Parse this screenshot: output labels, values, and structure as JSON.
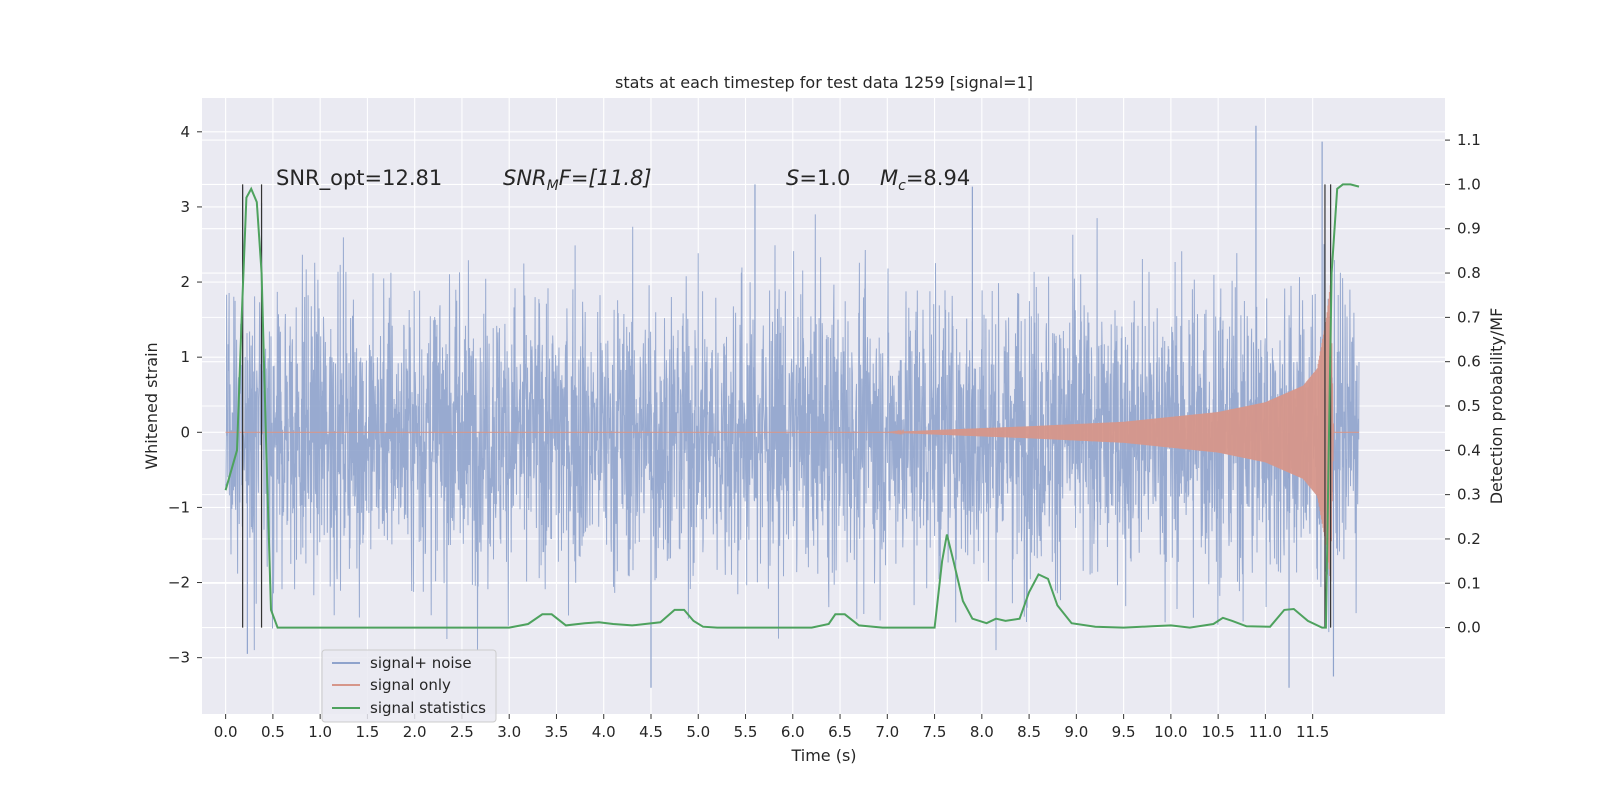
{
  "chart_data": {
    "type": "line",
    "title": "stats at each timestep for test data 1259 [signal=1]",
    "xlabel": "Time (s)",
    "ylabel_left": "Whitened strain",
    "ylabel_right": "Detection probability/MF",
    "xlim": [
      -0.25,
      12.9
    ],
    "ylim_left": [
      -3.75,
      4.45
    ],
    "ylim_right": [
      -0.195,
      1.195
    ],
    "grid": true,
    "legend_placement": "lower-left",
    "x_ticks": [
      0.0,
      0.5,
      1.0,
      1.5,
      2.0,
      2.5,
      3.0,
      3.5,
      4.0,
      4.5,
      5.0,
      5.5,
      6.0,
      6.5,
      7.0,
      7.5,
      8.0,
      8.5,
      9.0,
      9.5,
      10.0,
      10.5,
      11.0,
      11.5
    ],
    "x_tick_labels": [
      "0.0",
      "0.5",
      "1.0",
      "1.5",
      "2.0",
      "2.5",
      "3.0",
      "3.5",
      "4.0",
      "4.5",
      "5.0",
      "5.5",
      "6.0",
      "6.5",
      "7.0",
      "7.5",
      "8.0",
      "8.5",
      "9.0",
      "9.5",
      "10.0",
      "10.5",
      "11.0",
      "11.5"
    ],
    "y_ticks_left": [
      4,
      3,
      2,
      1,
      0,
      -1,
      -2,
      -3
    ],
    "y_tick_labels_left": [
      "4",
      "3",
      "2",
      "1",
      "0",
      "−1",
      "−2",
      "−3"
    ],
    "y_ticks_right": [
      1.1,
      1.0,
      0.9,
      0.8,
      0.7,
      0.6,
      0.5,
      0.4,
      0.3,
      0.2,
      0.1,
      0.0
    ],
    "y_tick_labels_right": [
      "1.1",
      "1.0",
      "0.9",
      "0.8",
      "0.7",
      "0.6",
      "0.5",
      "0.4",
      "0.3",
      "0.2",
      "0.1",
      "0.0"
    ],
    "annotations": {
      "snr_opt": "SNR_opt=12.81",
      "snr_mf_main": "SNR",
      "snr_mf_sub": "M",
      "snr_mf_rest": "F=[11.8]",
      "s_main": "S",
      "s_rest": "=1.0",
      "mc_main": "M",
      "mc_sub": "c",
      "mc_rest": "=8.94"
    },
    "vertical_markers_x": [
      0.18,
      0.38,
      11.63,
      11.69
    ],
    "series": [
      {
        "name": "signal+ noise",
        "color": "#8fa3cc",
        "axis": "left",
        "kind": "noisy_band",
        "x_range": [
          0.0,
          11.99
        ],
        "envelope_std": 0.95,
        "peak_values": [
          [
            0.18,
            3.27
          ],
          [
            0.38,
            3.05
          ],
          [
            5.6,
            3.3
          ],
          [
            7.9,
            3.27
          ],
          [
            10.9,
            4.08
          ],
          [
            11.6,
            3.87
          ],
          [
            4.5,
            -3.4
          ],
          [
            11.25,
            -3.4
          ],
          [
            11.72,
            -3.25
          ],
          [
            0.23,
            -2.95
          ]
        ]
      },
      {
        "name": "signal only",
        "color": "#d6968a",
        "axis": "left",
        "kind": "chirp",
        "x_range": [
          0.0,
          11.99
        ],
        "amplitude_points": [
          [
            7.0,
            0.0
          ],
          [
            7.5,
            0.03
          ],
          [
            8.5,
            0.08
          ],
          [
            9.5,
            0.14
          ],
          [
            10.5,
            0.27
          ],
          [
            11.0,
            0.4
          ],
          [
            11.4,
            0.62
          ],
          [
            11.55,
            0.85
          ],
          [
            11.65,
            1.55
          ],
          [
            11.69,
            2.0
          ],
          [
            11.72,
            0.0
          ]
        ]
      },
      {
        "name": "signal statistics",
        "color": "#4ea25e",
        "axis": "right",
        "x": [
          0.0,
          0.12,
          0.17,
          0.22,
          0.27,
          0.33,
          0.38,
          0.43,
          0.48,
          0.55,
          0.65,
          3.0,
          3.2,
          3.35,
          3.45,
          3.6,
          3.8,
          3.95,
          4.1,
          4.3,
          4.6,
          4.75,
          4.85,
          4.95,
          5.05,
          5.2,
          6.2,
          6.38,
          6.45,
          6.55,
          6.7,
          6.95,
          7.3,
          7.5,
          7.58,
          7.63,
          7.7,
          7.8,
          7.9,
          8.05,
          8.15,
          8.25,
          8.4,
          8.5,
          8.6,
          8.7,
          8.8,
          8.95,
          9.2,
          9.5,
          9.8,
          10.0,
          10.2,
          10.45,
          10.55,
          10.65,
          10.8,
          11.05,
          11.2,
          11.3,
          11.45,
          11.6,
          11.64,
          11.7,
          11.76,
          11.82,
          11.9,
          11.99
        ],
        "values": [
          0.31,
          0.4,
          0.7,
          0.97,
          0.99,
          0.96,
          0.8,
          0.4,
          0.04,
          0.0,
          0.0,
          0.0,
          0.008,
          0.03,
          0.03,
          0.005,
          0.01,
          0.012,
          0.008,
          0.005,
          0.012,
          0.04,
          0.04,
          0.015,
          0.002,
          0.0,
          0.0,
          0.008,
          0.03,
          0.03,
          0.005,
          0.0,
          0.0,
          0.0,
          0.15,
          0.21,
          0.15,
          0.06,
          0.02,
          0.01,
          0.02,
          0.015,
          0.02,
          0.08,
          0.12,
          0.11,
          0.05,
          0.01,
          0.002,
          0.0,
          0.003,
          0.005,
          0.0,
          0.008,
          0.022,
          0.015,
          0.003,
          0.002,
          0.04,
          0.042,
          0.015,
          0.0,
          0.0,
          0.8,
          0.99,
          1.0,
          1.0,
          0.995
        ]
      }
    ]
  }
}
